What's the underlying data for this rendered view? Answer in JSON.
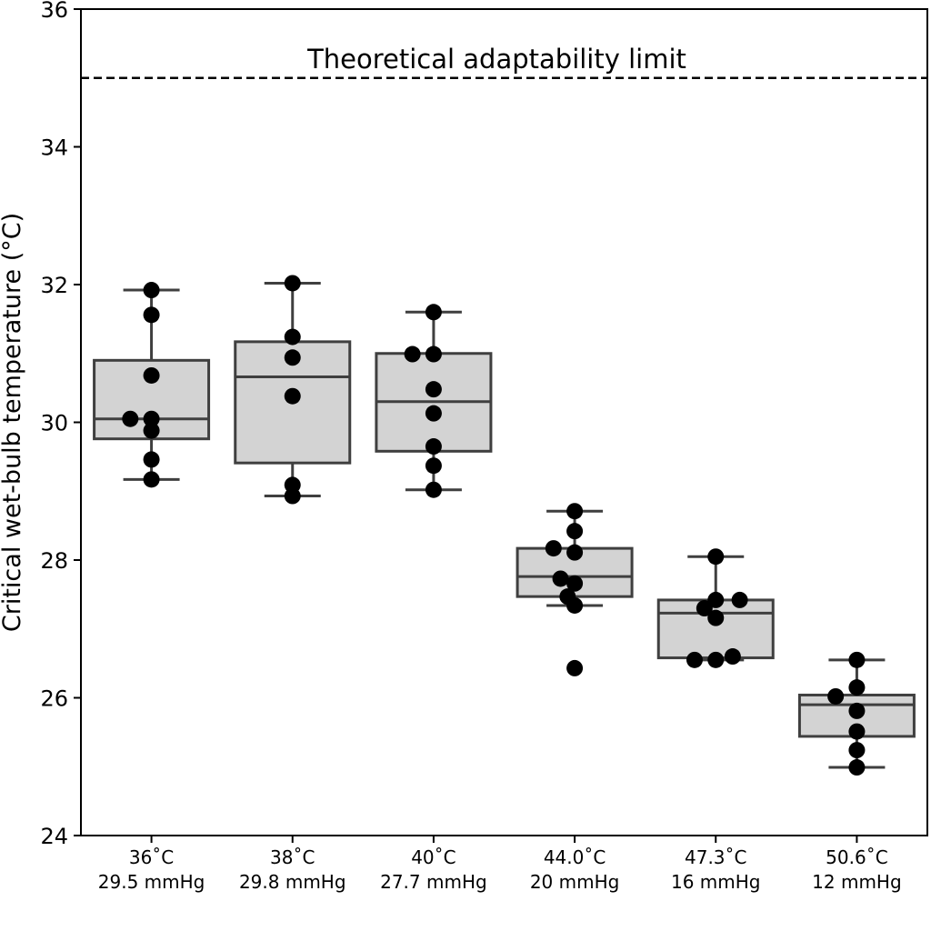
{
  "chart_data": {
    "type": "box",
    "title": "",
    "xlabel": "",
    "ylabel": "Critical wet-bulb temperature (°C)",
    "ylim": [
      24,
      36
    ],
    "yticks": [
      "24",
      "26",
      "28",
      "30",
      "32",
      "34",
      "36"
    ],
    "categories": [
      {
        "line1": "36˚C",
        "line2": "29.5 mmHg"
      },
      {
        "line1": "38˚C",
        "line2": "29.8 mmHg"
      },
      {
        "line1": "40˚C",
        "line2": "27.7 mmHg"
      },
      {
        "line1": "44.0˚C",
        "line2": "20 mmHg"
      },
      {
        "line1": "47.3˚C",
        "line2": "16 mmHg"
      },
      {
        "line1": "50.6˚C",
        "line2": "12 mmHg"
      }
    ],
    "boxes": [
      {
        "whisker_low": 29.17,
        "q1": 29.76,
        "median": 30.05,
        "q3": 30.9,
        "whisker_high": 31.92
      },
      {
        "whisker_low": 28.93,
        "q1": 29.41,
        "median": 30.66,
        "q3": 31.17,
        "whisker_high": 32.02
      },
      {
        "whisker_low": 29.02,
        "q1": 29.58,
        "median": 30.3,
        "q3": 31.0,
        "whisker_high": 31.6
      },
      {
        "whisker_low": 27.34,
        "q1": 27.47,
        "median": 27.76,
        "q3": 28.17,
        "whisker_high": 28.71
      },
      {
        "whisker_low": 26.55,
        "q1": 26.58,
        "median": 27.23,
        "q3": 27.42,
        "whisker_high": 28.05
      },
      {
        "whisker_low": 24.99,
        "q1": 25.44,
        "median": 25.9,
        "q3": 26.04,
        "whisker_high": 26.55
      }
    ],
    "points": [
      [
        {
          "dx": 0.0,
          "y": 31.92
        },
        {
          "dx": 0.0,
          "y": 31.56
        },
        {
          "dx": 0.0,
          "y": 30.68
        },
        {
          "dx": -0.15,
          "y": 30.05
        },
        {
          "dx": 0.0,
          "y": 30.05
        },
        {
          "dx": 0.0,
          "y": 29.88
        },
        {
          "dx": 0.0,
          "y": 29.46
        },
        {
          "dx": 0.0,
          "y": 29.17
        }
      ],
      [
        {
          "dx": 0.0,
          "y": 32.02
        },
        {
          "dx": 0.0,
          "y": 31.24
        },
        {
          "dx": 0.0,
          "y": 30.94
        },
        {
          "dx": 0.0,
          "y": 30.38
        },
        {
          "dx": 0.0,
          "y": 29.09
        },
        {
          "dx": 0.0,
          "y": 28.93
        }
      ],
      [
        {
          "dx": 0.0,
          "y": 31.6
        },
        {
          "dx": -0.15,
          "y": 30.99
        },
        {
          "dx": 0.0,
          "y": 30.99
        },
        {
          "dx": 0.0,
          "y": 30.48
        },
        {
          "dx": 0.0,
          "y": 30.13
        },
        {
          "dx": 0.0,
          "y": 29.65
        },
        {
          "dx": 0.0,
          "y": 29.37
        },
        {
          "dx": 0.0,
          "y": 29.02
        }
      ],
      [
        {
          "dx": 0.0,
          "y": 28.71
        },
        {
          "dx": 0.0,
          "y": 28.42
        },
        {
          "dx": -0.15,
          "y": 28.17
        },
        {
          "dx": 0.0,
          "y": 28.11
        },
        {
          "dx": -0.1,
          "y": 27.73
        },
        {
          "dx": 0.0,
          "y": 27.66
        },
        {
          "dx": -0.05,
          "y": 27.47
        },
        {
          "dx": 0.0,
          "y": 27.34
        },
        {
          "dx": 0.0,
          "y": 26.43
        }
      ],
      [
        {
          "dx": 0.0,
          "y": 28.05
        },
        {
          "dx": 0.0,
          "y": 27.42
        },
        {
          "dx": 0.17,
          "y": 27.42
        },
        {
          "dx": -0.08,
          "y": 27.3
        },
        {
          "dx": 0.0,
          "y": 27.16
        },
        {
          "dx": 0.12,
          "y": 26.6
        },
        {
          "dx": -0.15,
          "y": 26.55
        },
        {
          "dx": 0.0,
          "y": 26.55
        }
      ],
      [
        {
          "dx": 0.0,
          "y": 26.55
        },
        {
          "dx": 0.0,
          "y": 26.15
        },
        {
          "dx": -0.15,
          "y": 26.02
        },
        {
          "dx": 0.0,
          "y": 25.81
        },
        {
          "dx": 0.0,
          "y": 25.51
        },
        {
          "dx": 0.0,
          "y": 25.24
        },
        {
          "dx": 0.0,
          "y": 24.99
        }
      ]
    ],
    "reference_line": {
      "y": 35.0,
      "label": "Theoretical adaptability limit",
      "style": "dashed"
    },
    "grid": false,
    "legend": "none",
    "colors": {
      "box_fill": "#d3d3d3",
      "box_edge": "#3f3f3f",
      "point": "#000000",
      "axis": "#000000"
    }
  }
}
